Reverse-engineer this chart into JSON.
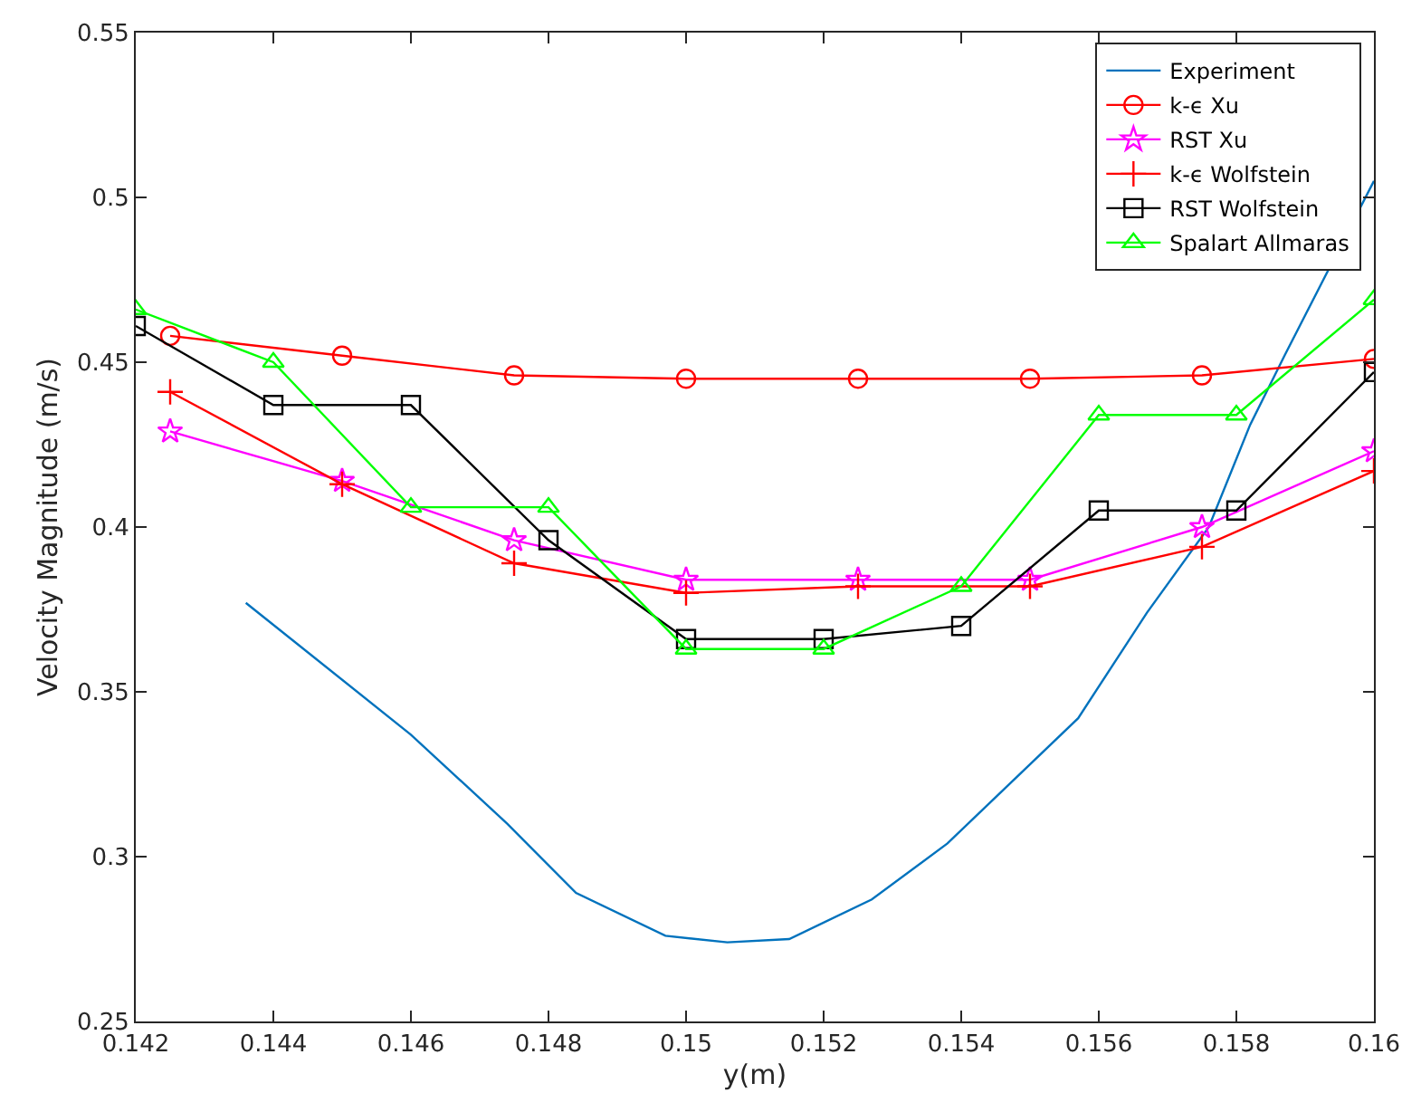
{
  "chart_data": {
    "type": "line",
    "xlabel": "y(m)",
    "ylabel": "Velocity Magnitude (m/s)",
    "xlim": [
      0.142,
      0.16
    ],
    "xticks": [
      0.142,
      0.144,
      0.146,
      0.148,
      0.15,
      0.152,
      0.154,
      0.156,
      0.158,
      0.16
    ],
    "ylim": [
      0.25,
      0.55
    ],
    "yticks": [
      0.25,
      0.3,
      0.35,
      0.4,
      0.45,
      0.5,
      0.55
    ],
    "grid": false,
    "legend": "top right",
    "series": [
      {
        "name": "Experiment",
        "color": "#0072bd",
        "marker": "none",
        "x": [
          0.1436,
          0.146,
          0.1474,
          0.1484,
          0.1497,
          0.1506,
          0.1515,
          0.1527,
          0.1538,
          0.1557,
          0.1567,
          0.1576,
          0.1582,
          0.1587,
          0.16
        ],
        "values": [
          0.377,
          0.337,
          0.31,
          0.289,
          0.276,
          0.274,
          0.275,
          0.287,
          0.304,
          0.342,
          0.374,
          0.4,
          0.431,
          0.452,
          0.505
        ]
      },
      {
        "name": "k-ϵ Xu",
        "color": "#ff0000",
        "marker": "circle",
        "x": [
          0.1425,
          0.145,
          0.1475,
          0.15,
          0.1525,
          0.155,
          0.1575,
          0.16
        ],
        "values": [
          0.458,
          0.452,
          0.446,
          0.445,
          0.445,
          0.445,
          0.446,
          0.451
        ]
      },
      {
        "name": "RST Xu",
        "color": "#ff00ff",
        "marker": "star",
        "x": [
          0.1425,
          0.145,
          0.1475,
          0.15,
          0.1525,
          0.155,
          0.1575,
          0.16
        ],
        "values": [
          0.429,
          0.414,
          0.396,
          0.384,
          0.384,
          0.384,
          0.4,
          0.423
        ]
      },
      {
        "name": "k-ϵ Wolfstein",
        "color": "#ff0000",
        "marker": "cross",
        "x": [
          0.1425,
          0.145,
          0.1475,
          0.15,
          0.1525,
          0.155,
          0.1575,
          0.16
        ],
        "values": [
          0.441,
          0.413,
          0.389,
          0.38,
          0.382,
          0.382,
          0.394,
          0.417
        ]
      },
      {
        "name": "RST Wolfstein",
        "color": "#000000",
        "marker": "square",
        "x": [
          0.142,
          0.144,
          0.146,
          0.148,
          0.15,
          0.152,
          0.154,
          0.156,
          0.158,
          0.16
        ],
        "values": [
          0.461,
          0.437,
          0.437,
          0.396,
          0.366,
          0.366,
          0.37,
          0.405,
          0.405,
          0.447
        ]
      },
      {
        "name": "Spalart Allmaras",
        "color": "#00ff00",
        "marker": "triangle",
        "x": [
          0.142,
          0.144,
          0.146,
          0.148,
          0.15,
          0.152,
          0.154,
          0.156,
          0.158,
          0.16
        ],
        "values": [
          0.466,
          0.45,
          0.406,
          0.406,
          0.363,
          0.363,
          0.382,
          0.434,
          0.434,
          0.469
        ]
      }
    ]
  }
}
